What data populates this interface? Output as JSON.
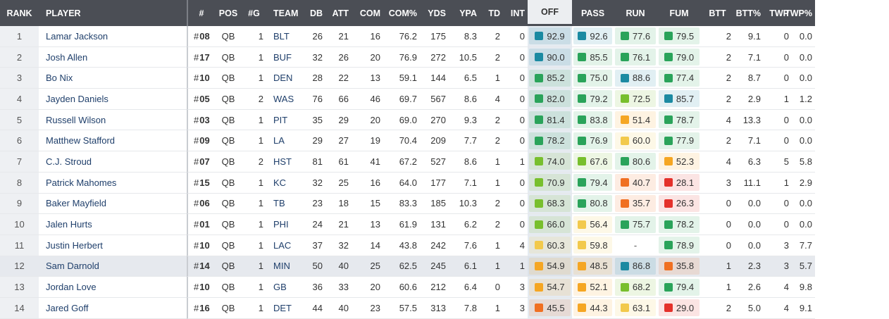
{
  "headers": {
    "rank": "RANK",
    "player": "PLAYER",
    "num": "#",
    "pos": "POS",
    "games": "#G",
    "team": "TEAM",
    "db": "DB",
    "att": "ATT",
    "com": "COM",
    "comp": "COM%",
    "yds": "YDS",
    "ypa": "YPA",
    "td": "TD",
    "int": "INT",
    "off": "OFF",
    "pass": "PASS",
    "run": "RUN",
    "fum": "FUM",
    "btt": "BTT",
    "bttp": "BTT%",
    "twp": "TWP",
    "twpp": "TWP%"
  },
  "grade_colors": {
    "elite": "#1b8aa2",
    "high": "#2aa35a",
    "good": "#78bf2d",
    "avg": "#f2c94c",
    "below": "#f5a623",
    "low": "#f07022",
    "poor": "#e4312b"
  },
  "rows": [
    {
      "rank": "1",
      "player": "Lamar Jackson",
      "num": "08",
      "pos": "QB",
      "g": "1",
      "team": "BLT",
      "db": "26",
      "att": "21",
      "com": "16",
      "comp": "76.2",
      "yds": "175",
      "ypa": "8.3",
      "td": "2",
      "int": "0",
      "off": "92.9",
      "pass": "92.6",
      "run": "77.6",
      "fum": "79.5",
      "btt": "2",
      "bttp": "9.1",
      "twp": "0",
      "twpp": "0.0",
      "c_off": "elite",
      "c_pass": "elite",
      "c_run": "high",
      "c_fum": "high"
    },
    {
      "rank": "2",
      "player": "Josh Allen",
      "num": "17",
      "pos": "QB",
      "g": "1",
      "team": "BUF",
      "db": "32",
      "att": "26",
      "com": "20",
      "comp": "76.9",
      "yds": "272",
      "ypa": "10.5",
      "td": "2",
      "int": "0",
      "off": "90.0",
      "pass": "85.5",
      "run": "76.1",
      "fum": "79.0",
      "btt": "2",
      "bttp": "7.1",
      "twp": "0",
      "twpp": "0.0",
      "c_off": "elite",
      "c_pass": "high",
      "c_run": "high",
      "c_fum": "high"
    },
    {
      "rank": "3",
      "player": "Bo Nix",
      "num": "10",
      "pos": "QB",
      "g": "1",
      "team": "DEN",
      "db": "28",
      "att": "22",
      "com": "13",
      "comp": "59.1",
      "yds": "144",
      "ypa": "6.5",
      "td": "1",
      "int": "0",
      "off": "85.2",
      "pass": "75.0",
      "run": "88.6",
      "fum": "77.4",
      "btt": "2",
      "bttp": "8.7",
      "twp": "0",
      "twpp": "0.0",
      "c_off": "high",
      "c_pass": "high",
      "c_run": "elite",
      "c_fum": "high"
    },
    {
      "rank": "4",
      "player": "Jayden Daniels",
      "num": "05",
      "pos": "QB",
      "g": "2",
      "team": "WAS",
      "db": "76",
      "att": "66",
      "com": "46",
      "comp": "69.7",
      "yds": "567",
      "ypa": "8.6",
      "td": "4",
      "int": "0",
      "off": "82.0",
      "pass": "79.2",
      "run": "72.5",
      "fum": "85.7",
      "btt": "2",
      "bttp": "2.9",
      "twp": "1",
      "twpp": "1.2",
      "c_off": "high",
      "c_pass": "high",
      "c_run": "good",
      "c_fum": "elite"
    },
    {
      "rank": "5",
      "player": "Russell Wilson",
      "num": "03",
      "pos": "QB",
      "g": "1",
      "team": "PIT",
      "db": "35",
      "att": "29",
      "com": "20",
      "comp": "69.0",
      "yds": "270",
      "ypa": "9.3",
      "td": "2",
      "int": "0",
      "off": "81.4",
      "pass": "83.8",
      "run": "51.4",
      "fum": "78.7",
      "btt": "4",
      "bttp": "13.3",
      "twp": "0",
      "twpp": "0.0",
      "c_off": "high",
      "c_pass": "high",
      "c_run": "below",
      "c_fum": "high"
    },
    {
      "rank": "6",
      "player": "Matthew Stafford",
      "num": "09",
      "pos": "QB",
      "g": "1",
      "team": "LA",
      "db": "29",
      "att": "27",
      "com": "19",
      "comp": "70.4",
      "yds": "209",
      "ypa": "7.7",
      "td": "2",
      "int": "0",
      "off": "78.2",
      "pass": "76.9",
      "run": "60.0",
      "fum": "77.9",
      "btt": "2",
      "bttp": "7.1",
      "twp": "0",
      "twpp": "0.0",
      "c_off": "high",
      "c_pass": "high",
      "c_run": "avg",
      "c_fum": "high"
    },
    {
      "rank": "7",
      "player": "C.J. Stroud",
      "num": "07",
      "pos": "QB",
      "g": "2",
      "team": "HST",
      "db": "81",
      "att": "61",
      "com": "41",
      "comp": "67.2",
      "yds": "527",
      "ypa": "8.6",
      "td": "1",
      "int": "1",
      "off": "74.0",
      "pass": "67.6",
      "run": "80.6",
      "fum": "52.3",
      "btt": "4",
      "bttp": "6.3",
      "twp": "5",
      "twpp": "5.8",
      "c_off": "good",
      "c_pass": "good",
      "c_run": "high",
      "c_fum": "below"
    },
    {
      "rank": "8",
      "player": "Patrick Mahomes",
      "num": "15",
      "pos": "QB",
      "g": "1",
      "team": "KC",
      "db": "32",
      "att": "25",
      "com": "16",
      "comp": "64.0",
      "yds": "177",
      "ypa": "7.1",
      "td": "1",
      "int": "0",
      "off": "70.9",
      "pass": "79.4",
      "run": "40.7",
      "fum": "28.1",
      "btt": "3",
      "bttp": "11.1",
      "twp": "1",
      "twpp": "2.9",
      "c_off": "good",
      "c_pass": "high",
      "c_run": "low",
      "c_fum": "poor"
    },
    {
      "rank": "9",
      "player": "Baker Mayfield",
      "num": "06",
      "pos": "QB",
      "g": "1",
      "team": "TB",
      "db": "23",
      "att": "18",
      "com": "15",
      "comp": "83.3",
      "yds": "185",
      "ypa": "10.3",
      "td": "2",
      "int": "0",
      "off": "68.3",
      "pass": "80.8",
      "run": "35.7",
      "fum": "26.3",
      "btt": "0",
      "bttp": "0.0",
      "twp": "0",
      "twpp": "0.0",
      "c_off": "good",
      "c_pass": "high",
      "c_run": "low",
      "c_fum": "poor"
    },
    {
      "rank": "10",
      "player": "Jalen Hurts",
      "num": "01",
      "pos": "QB",
      "g": "1",
      "team": "PHI",
      "db": "24",
      "att": "21",
      "com": "13",
      "comp": "61.9",
      "yds": "131",
      "ypa": "6.2",
      "td": "2",
      "int": "0",
      "off": "66.0",
      "pass": "56.4",
      "run": "75.7",
      "fum": "78.2",
      "btt": "0",
      "bttp": "0.0",
      "twp": "0",
      "twpp": "0.0",
      "c_off": "good",
      "c_pass": "avg",
      "c_run": "high",
      "c_fum": "high"
    },
    {
      "rank": "11",
      "player": "Justin Herbert",
      "num": "10",
      "pos": "QB",
      "g": "1",
      "team": "LAC",
      "db": "37",
      "att": "32",
      "com": "14",
      "comp": "43.8",
      "yds": "242",
      "ypa": "7.6",
      "td": "1",
      "int": "4",
      "off": "60.3",
      "pass": "59.8",
      "run": "-",
      "fum": "78.9",
      "btt": "0",
      "bttp": "0.0",
      "twp": "3",
      "twpp": "7.7",
      "c_off": "avg",
      "c_pass": "avg",
      "c_run": "none",
      "c_fum": "high"
    },
    {
      "rank": "12",
      "player": "Sam Darnold",
      "num": "14",
      "pos": "QB",
      "g": "1",
      "team": "MIN",
      "db": "50",
      "att": "40",
      "com": "25",
      "comp": "62.5",
      "yds": "245",
      "ypa": "6.1",
      "td": "1",
      "int": "1",
      "off": "54.9",
      "pass": "48.5",
      "run": "86.8",
      "fum": "35.8",
      "btt": "1",
      "bttp": "2.3",
      "twp": "3",
      "twpp": "5.7",
      "c_off": "below",
      "c_pass": "below",
      "c_run": "elite",
      "c_fum": "low"
    },
    {
      "rank": "13",
      "player": "Jordan Love",
      "num": "10",
      "pos": "QB",
      "g": "1",
      "team": "GB",
      "db": "36",
      "att": "33",
      "com": "20",
      "comp": "60.6",
      "yds": "212",
      "ypa": "6.4",
      "td": "0",
      "int": "3",
      "off": "54.7",
      "pass": "52.1",
      "run": "68.2",
      "fum": "79.4",
      "btt": "1",
      "bttp": "2.6",
      "twp": "4",
      "twpp": "9.8",
      "c_off": "below",
      "c_pass": "below",
      "c_run": "good",
      "c_fum": "high"
    },
    {
      "rank": "14",
      "player": "Jared Goff",
      "num": "16",
      "pos": "QB",
      "g": "1",
      "team": "DET",
      "db": "44",
      "att": "40",
      "com": "23",
      "comp": "57.5",
      "yds": "313",
      "ypa": "7.8",
      "td": "1",
      "int": "3",
      "off": "45.5",
      "pass": "44.3",
      "run": "63.1",
      "fum": "29.0",
      "btt": "2",
      "bttp": "5.0",
      "twp": "4",
      "twpp": "9.1",
      "c_off": "low",
      "c_pass": "below",
      "c_run": "avg",
      "c_fum": "poor"
    }
  ]
}
